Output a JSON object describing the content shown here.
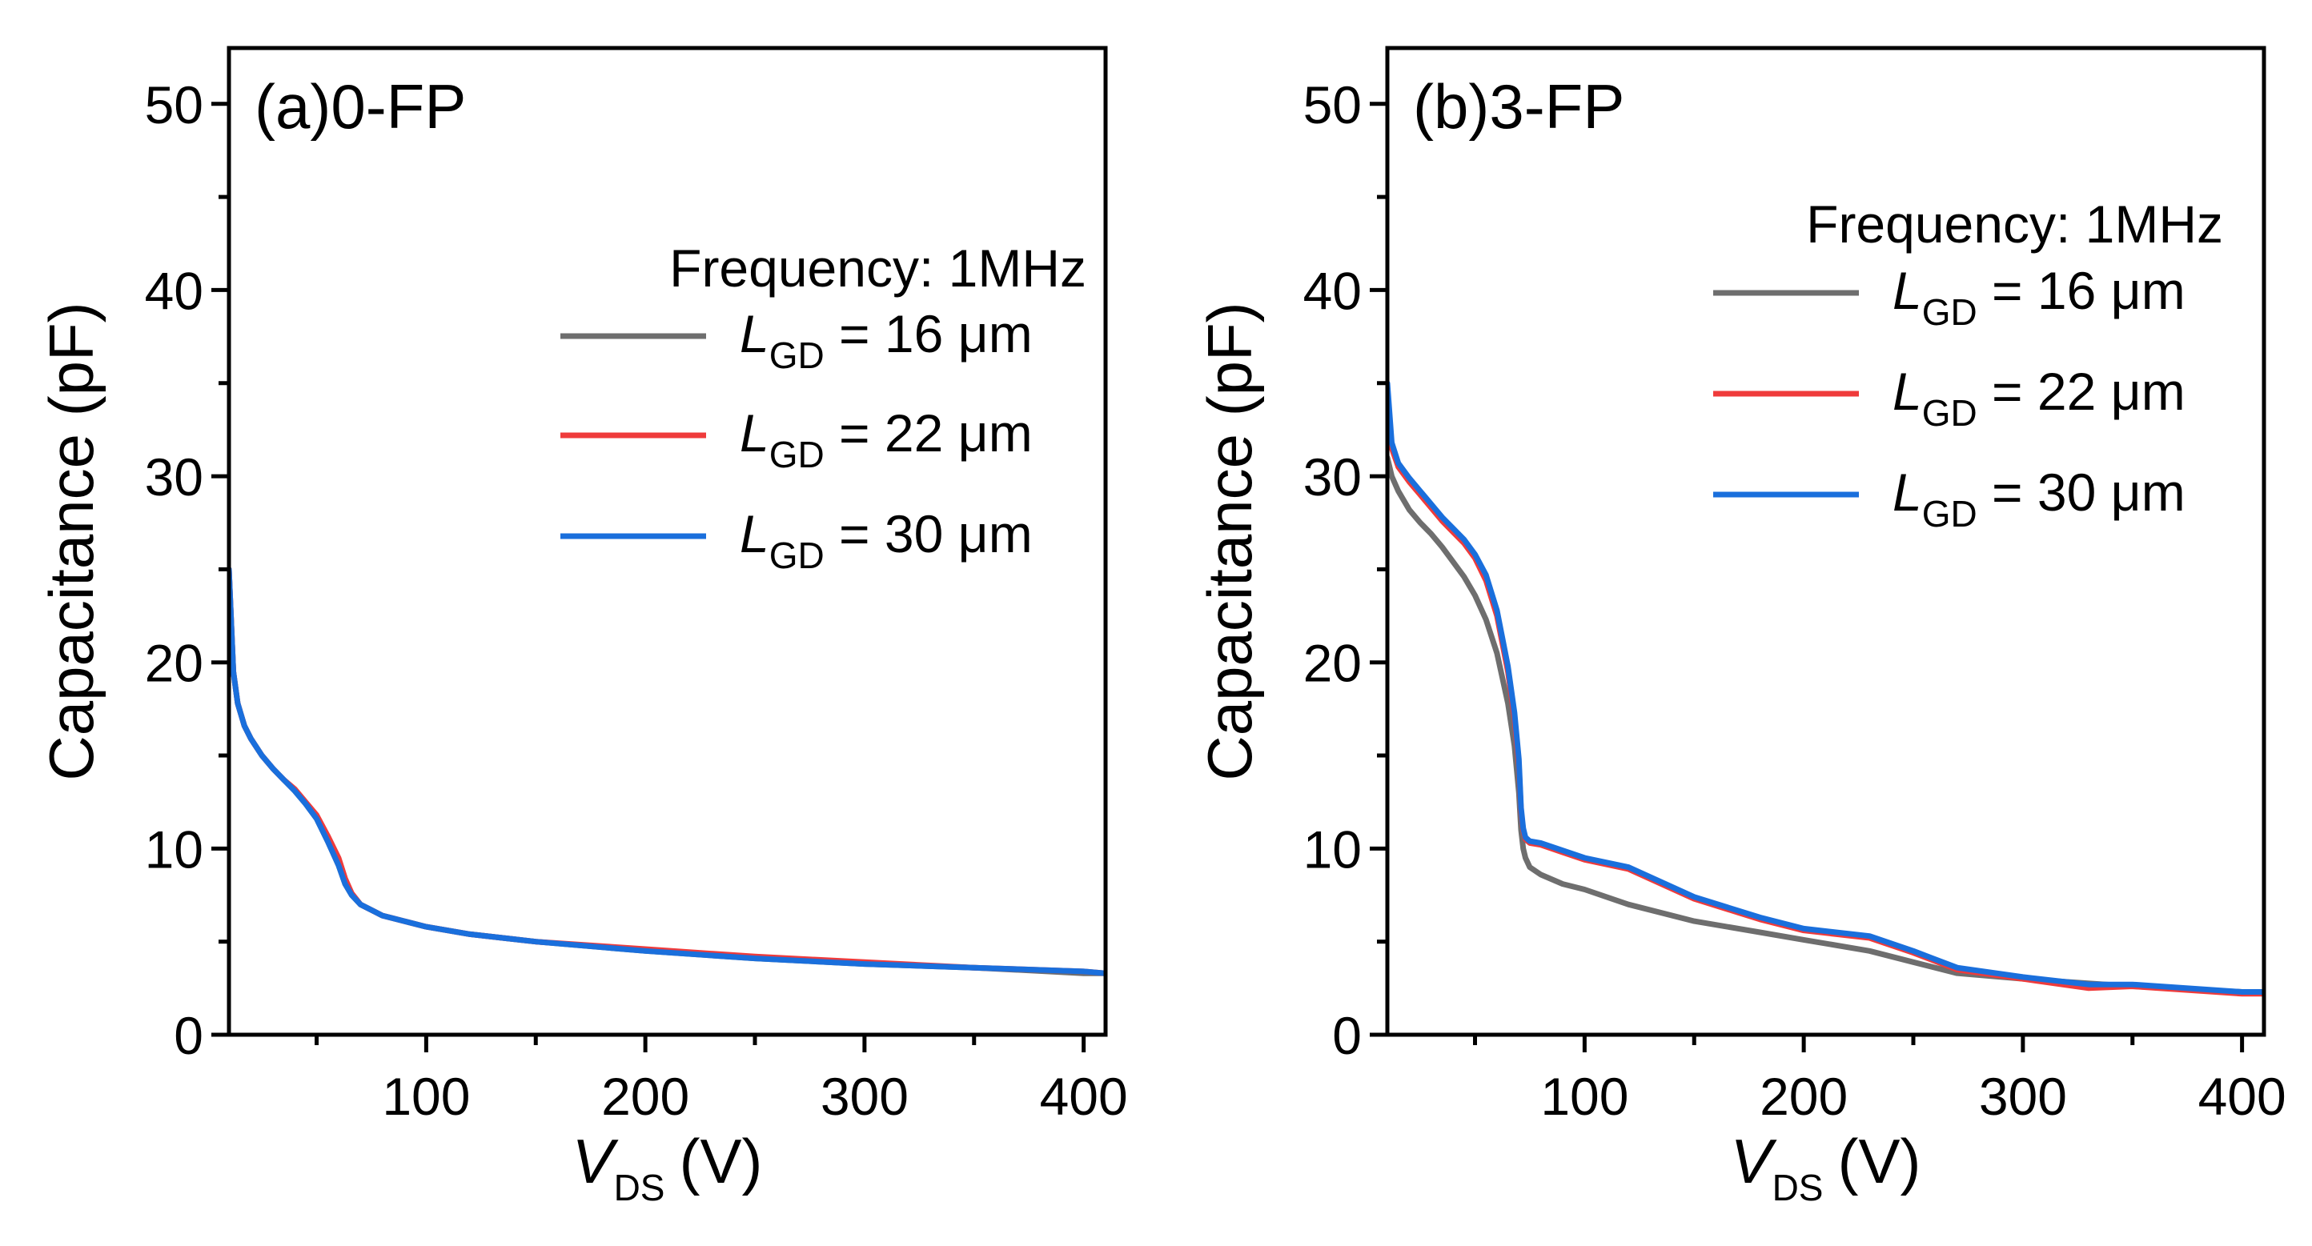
{
  "colors": {
    "lgd16": "#6e6e6e",
    "lgd22": "#ef3b3b",
    "lgd30": "#1a6fdc",
    "axis": "#000000"
  },
  "chart_data": [
    {
      "type": "line",
      "panel_label": "(a)0-FP",
      "xlabel_main": "V",
      "xlabel_sub": "DS",
      "xlabel_unit": "(V)",
      "ylabel": "Capacitance (pF)",
      "xlim": [
        10,
        410
      ],
      "ylim": [
        0,
        53
      ],
      "xticks": [
        100,
        200,
        300,
        400
      ],
      "xtick_labels": [
        "100",
        "200",
        "300",
        "400"
      ],
      "yticks": [
        0,
        10,
        20,
        30,
        40,
        50
      ],
      "ytick_labels": [
        "0",
        "10",
        "20",
        "30",
        "40",
        "50"
      ],
      "legend_title": "Frequency: 1MHz",
      "legend_position": "top-right",
      "series": [
        {
          "name": "L_GD = 16 μm",
          "label_main": "L",
          "label_sub": "GD",
          "label_rest": " = 16 μm",
          "color_key": "lgd16",
          "x": [
            10,
            12,
            14,
            17,
            20,
            25,
            30,
            35,
            40,
            45,
            50,
            55,
            60,
            63,
            66,
            70,
            75,
            80,
            90,
            100,
            120,
            150,
            200,
            250,
            300,
            350,
            400,
            410
          ],
          "y": [
            25,
            19.5,
            17.8,
            16.6,
            15.9,
            15.0,
            14.3,
            13.7,
            13.1,
            12.4,
            11.6,
            10.4,
            9.1,
            8.1,
            7.5,
            7.0,
            6.7,
            6.4,
            6.1,
            5.8,
            5.4,
            5.0,
            4.5,
            4.1,
            3.8,
            3.6,
            3.3,
            3.3
          ]
        },
        {
          "name": "L_GD = 22 μm",
          "label_main": "L",
          "label_sub": "GD",
          "label_rest": " = 22 μm",
          "color_key": "lgd22",
          "x": [
            10,
            12,
            14,
            17,
            20,
            25,
            30,
            35,
            40,
            45,
            50,
            55,
            60,
            63,
            66,
            70,
            75,
            80,
            90,
            100,
            120,
            150,
            200,
            250,
            300,
            350,
            400,
            410
          ],
          "y": [
            25,
            19.5,
            17.8,
            16.6,
            15.9,
            15.0,
            14.3,
            13.7,
            13.2,
            12.5,
            11.8,
            10.7,
            9.5,
            8.4,
            7.6,
            7.0,
            6.7,
            6.4,
            6.1,
            5.8,
            5.4,
            5.0,
            4.6,
            4.2,
            3.9,
            3.6,
            3.4,
            3.3
          ]
        },
        {
          "name": "L_GD = 30 μm",
          "label_main": "L",
          "label_sub": "GD",
          "label_rest": " = 30 μm",
          "color_key": "lgd30",
          "x": [
            10,
            12,
            14,
            17,
            20,
            25,
            30,
            35,
            40,
            45,
            50,
            55,
            60,
            63,
            66,
            70,
            75,
            80,
            90,
            100,
            120,
            150,
            200,
            250,
            300,
            350,
            400,
            410
          ],
          "y": [
            25,
            19.5,
            17.8,
            16.6,
            15.9,
            15.0,
            14.3,
            13.7,
            13.1,
            12.4,
            11.6,
            10.4,
            9.1,
            8.1,
            7.5,
            7.0,
            6.7,
            6.4,
            6.1,
            5.8,
            5.4,
            5.0,
            4.5,
            4.1,
            3.8,
            3.6,
            3.4,
            3.3
          ]
        }
      ]
    },
    {
      "type": "line",
      "panel_label": "(b)3-FP",
      "xlabel_main": "V",
      "xlabel_sub": "DS",
      "xlabel_unit": "(V)",
      "ylabel": "Capacitance (pF)",
      "xlim": [
        10,
        410
      ],
      "ylim": [
        0,
        53
      ],
      "xticks": [
        100,
        200,
        300,
        400
      ],
      "xtick_labels": [
        "100",
        "200",
        "300",
        "400"
      ],
      "yticks": [
        0,
        10,
        20,
        30,
        40,
        50
      ],
      "ytick_labels": [
        "0",
        "10",
        "20",
        "30",
        "40",
        "50"
      ],
      "legend_title": "Frequency: 1MHz",
      "legend_position": "top-right",
      "series": [
        {
          "name": "L_GD = 16 μm",
          "label_main": "L",
          "label_sub": "GD",
          "label_rest": " = 16 μm",
          "color_key": "lgd16",
          "x": [
            10,
            12,
            15,
            20,
            25,
            30,
            35,
            40,
            45,
            50,
            55,
            60,
            65,
            68,
            70,
            71,
            72,
            73,
            75,
            80,
            90,
            100,
            120,
            150,
            180,
            200,
            230,
            250,
            270,
            300,
            350,
            400,
            410
          ],
          "y": [
            31,
            30.0,
            29.2,
            28.2,
            27.5,
            26.9,
            26.2,
            25.4,
            24.6,
            23.6,
            22.3,
            20.5,
            17.8,
            15.5,
            13.0,
            11.0,
            10.0,
            9.5,
            9.0,
            8.6,
            8.1,
            7.8,
            7.0,
            6.1,
            5.5,
            5.1,
            4.5,
            3.9,
            3.3,
            3.0,
            2.6,
            2.3,
            2.3
          ]
        },
        {
          "name": "L_GD = 22 μm",
          "label_main": "L",
          "label_sub": "GD",
          "label_rest": " = 22 μm",
          "color_key": "lgd22",
          "x": [
            10,
            12,
            15,
            20,
            25,
            30,
            35,
            40,
            45,
            50,
            55,
            60,
            65,
            68,
            70,
            71,
            72,
            73,
            75,
            80,
            90,
            100,
            120,
            150,
            180,
            200,
            230,
            250,
            270,
            300,
            330,
            350,
            400,
            410
          ],
          "y": [
            34,
            31.5,
            30.5,
            29.7,
            29.0,
            28.3,
            27.6,
            27.0,
            26.4,
            25.6,
            24.4,
            22.5,
            19.5,
            17.0,
            14.5,
            12.0,
            11.0,
            10.5,
            10.3,
            10.2,
            9.8,
            9.4,
            8.9,
            7.3,
            6.2,
            5.6,
            5.2,
            4.4,
            3.5,
            3.0,
            2.5,
            2.6,
            2.2,
            2.2
          ]
        },
        {
          "name": "L_GD = 30 μm",
          "label_main": "L",
          "label_sub": "GD",
          "label_rest": " = 30 μm",
          "color_key": "lgd30",
          "x": [
            10,
            12,
            15,
            20,
            25,
            30,
            35,
            40,
            45,
            50,
            55,
            60,
            65,
            68,
            70,
            71,
            72,
            73,
            75,
            80,
            90,
            100,
            120,
            150,
            180,
            200,
            230,
            250,
            270,
            300,
            330,
            350,
            400,
            410
          ],
          "y": [
            35,
            31.8,
            30.7,
            29.9,
            29.2,
            28.5,
            27.8,
            27.2,
            26.6,
            25.8,
            24.7,
            22.8,
            19.8,
            17.3,
            14.8,
            12.2,
            11.1,
            10.6,
            10.4,
            10.3,
            9.9,
            9.5,
            9.0,
            7.4,
            6.3,
            5.7,
            5.3,
            4.5,
            3.6,
            3.1,
            2.7,
            2.7,
            2.3,
            2.3
          ]
        }
      ]
    }
  ]
}
